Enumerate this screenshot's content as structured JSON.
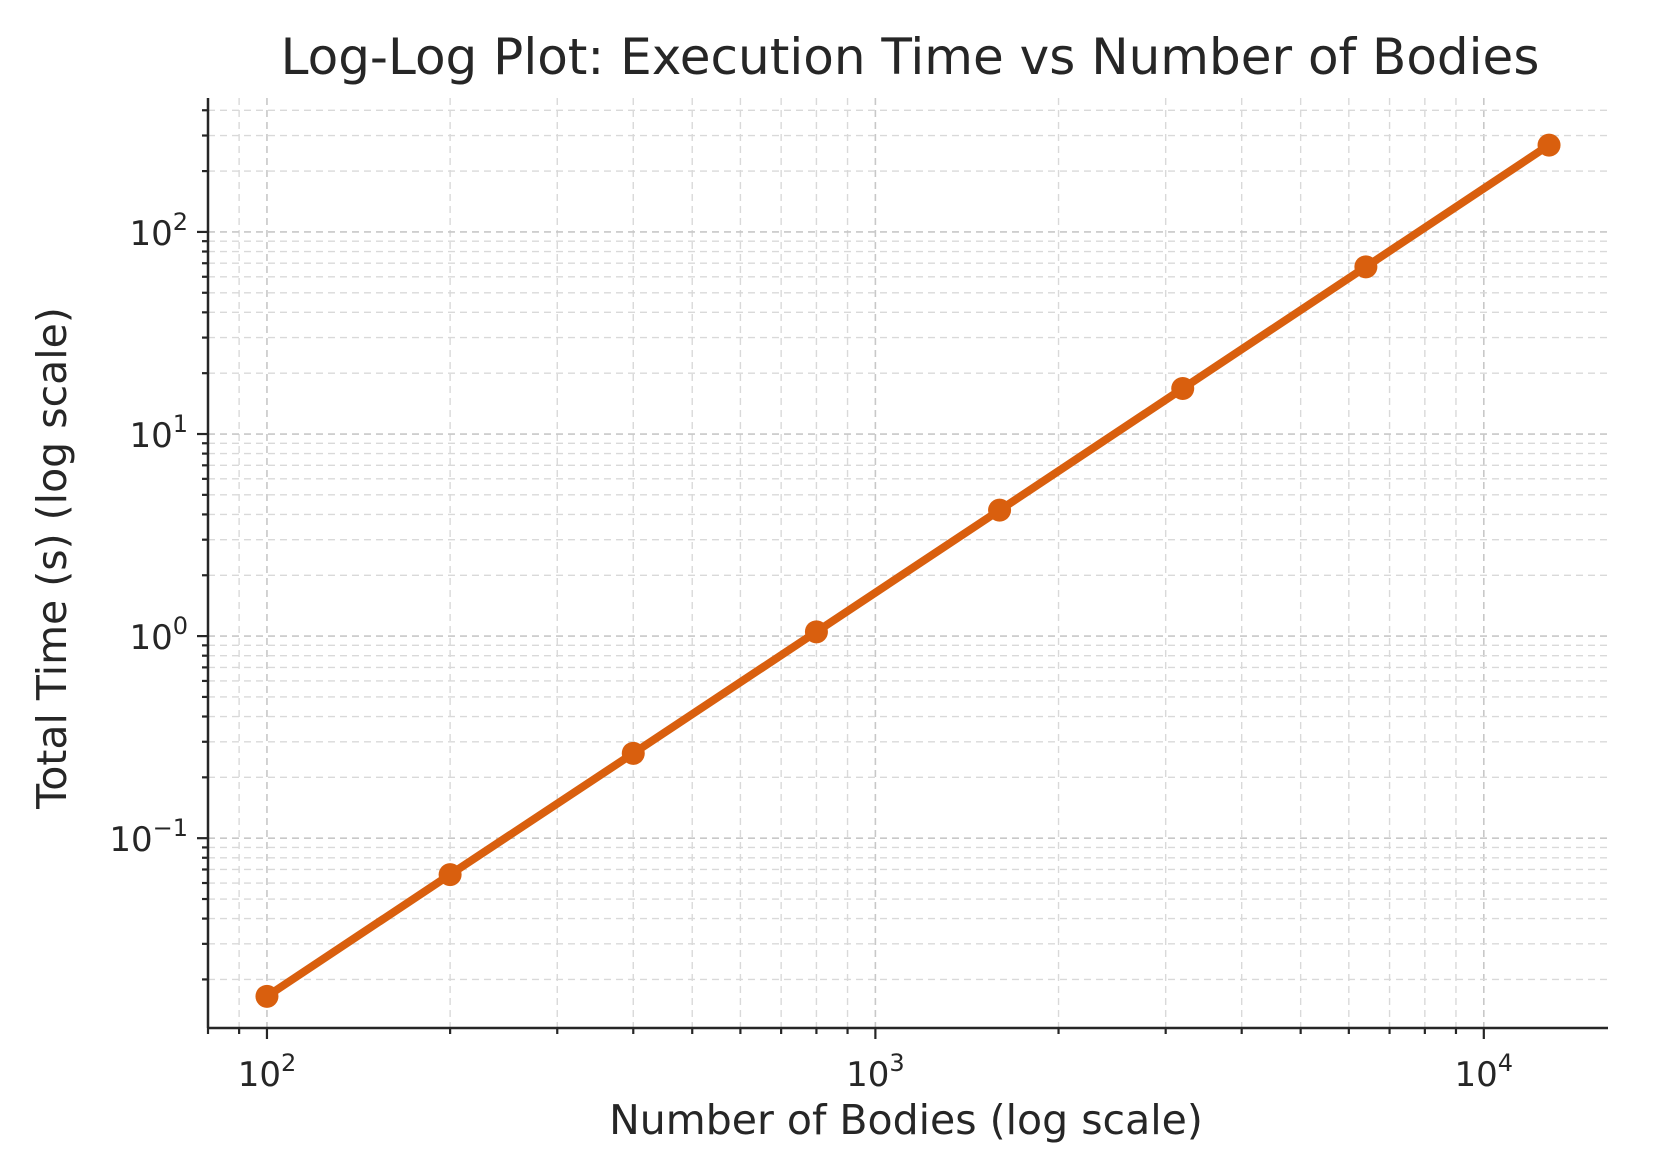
{
  "chart_data": {
    "type": "line",
    "title": "Log-Log Plot: Execution Time vs Number of Bodies",
    "xlabel": "Number of Bodies (log scale)",
    "ylabel": "Total Time (s) (log scale)",
    "xscale": "log",
    "yscale": "log",
    "xlim": [
      80,
      16000
    ],
    "ylim": [
      0.0115,
      460
    ],
    "grid": "major and minor, dashed",
    "x_ticks": [
      {
        "base": "10",
        "exp": "2",
        "value": 100
      },
      {
        "base": "10",
        "exp": "3",
        "value": 1000
      },
      {
        "base": "10",
        "exp": "4",
        "value": 10000
      }
    ],
    "y_ticks": [
      {
        "base": "10",
        "exp": "−1",
        "value": 0.1
      },
      {
        "base": "10",
        "exp": "0",
        "value": 1
      },
      {
        "base": "10",
        "exp": "1",
        "value": 10
      },
      {
        "base": "10",
        "exp": "2",
        "value": 100
      }
    ],
    "series": [
      {
        "color": "#d95f0e",
        "marker": "circle",
        "x": [
          100,
          200,
          400,
          800,
          1600,
          3200,
          6400,
          12800
        ],
        "y": [
          0.0165,
          0.066,
          0.263,
          1.05,
          4.2,
          16.8,
          67.2,
          269
        ]
      }
    ]
  }
}
